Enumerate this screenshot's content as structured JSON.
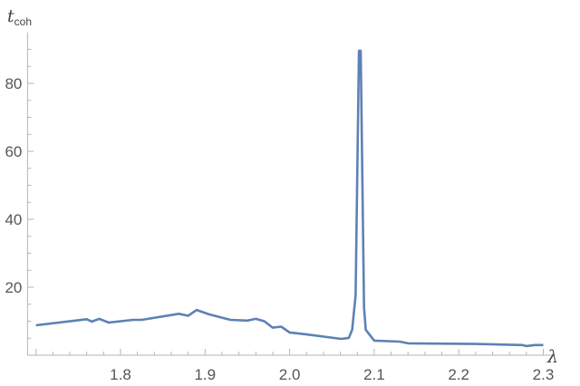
{
  "chart_data": {
    "type": "line",
    "title": "",
    "xlabel": "λ",
    "ylabel_main": "t",
    "ylabel_sub": "coh",
    "xlim": [
      1.69,
      2.31
    ],
    "ylim": [
      0,
      95
    ],
    "grid": false,
    "x_ticks": [
      "1.8",
      "1.9",
      "2.0",
      "2.1",
      "2.2",
      "2.3"
    ],
    "y_ticks": [
      "20",
      "40",
      "60",
      "80"
    ],
    "line_color": "#5E81B5",
    "series": [
      {
        "x": [
          1.7,
          1.76,
          1.766,
          1.775,
          1.786,
          1.815,
          1.825,
          1.869,
          1.88,
          1.89,
          1.905,
          1.93,
          1.95,
          1.96,
          1.97,
          1.98,
          1.99,
          2.0,
          2.02,
          2.061,
          2.07,
          2.074,
          2.078,
          2.082,
          2.084,
          2.088,
          2.09,
          2.1,
          2.13,
          2.14,
          2.22,
          2.275,
          2.28,
          2.29,
          2.3
        ],
        "y": [
          8.8,
          10.6,
          9.9,
          10.7,
          9.6,
          10.4,
          10.4,
          12.2,
          11.6,
          13.3,
          12.0,
          10.4,
          10.2,
          10.7,
          10.0,
          8.1,
          8.4,
          6.7,
          6.1,
          4.8,
          5.1,
          7.5,
          17.6,
          89.6,
          89.6,
          14.0,
          7.5,
          4.3,
          4.0,
          3.5,
          3.3,
          3.0,
          2.7,
          3.0,
          3.0
        ]
      }
    ]
  }
}
